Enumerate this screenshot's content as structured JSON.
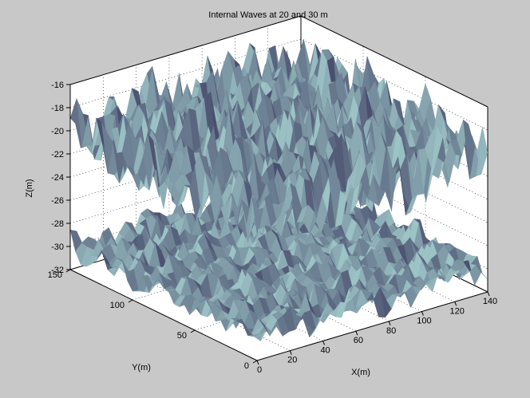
{
  "figure": {
    "background": "#c8c8c8",
    "axes_background": "#ffffff"
  },
  "chart_data": {
    "type": "surface",
    "title": "Internal Waves at 20 and 30 m",
    "xlabel": "X(m)",
    "ylabel": "Y(m)",
    "zlabel": "Z(m)",
    "xlim": [
      0,
      140
    ],
    "ylim": [
      0,
      150
    ],
    "zlim": [
      -32,
      -16
    ],
    "xticks": [
      0,
      20,
      40,
      60,
      80,
      100,
      120,
      140
    ],
    "yticks": [
      0,
      50,
      100,
      150
    ],
    "zticks": [
      -32,
      -30,
      -28,
      -26,
      -24,
      -22,
      -20,
      -18,
      -16
    ],
    "xtick_labels": [
      "0",
      "20",
      "40",
      "60",
      "80",
      "100",
      "120",
      "140"
    ],
    "ytick_labels": [
      "0",
      "50",
      "100",
      "150"
    ],
    "ztick_labels": [
      "-32",
      "-30",
      "-28",
      "-26",
      "-24",
      "-22",
      "-20",
      "-18",
      "-16"
    ],
    "grid": true,
    "view": "3d-perspective",
    "surface_color": "#9cc3c6",
    "shadow_color": "#4a4f6e",
    "surfaces": [
      {
        "mean_depth": -20,
        "amplitude": 3.5
      },
      {
        "mean_depth": -30,
        "amplitude": 1.5
      }
    ]
  }
}
